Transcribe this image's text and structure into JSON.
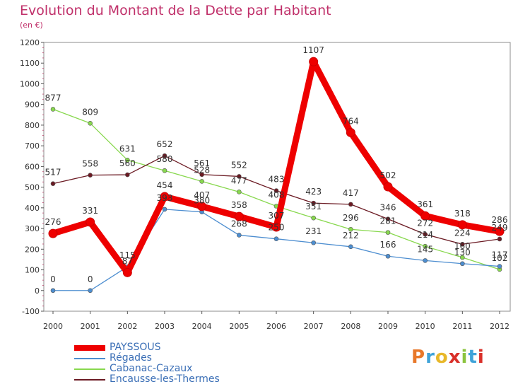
{
  "title": "Evolution du Montant de la Dette par Habitant",
  "subtitle": "(en €)",
  "brand": {
    "text": "Proxiti",
    "letter_colors": [
      "#e8782a",
      "#3fa3d9",
      "#e8b82a",
      "#d9302a",
      "#8cc43f",
      "#3fa3d9",
      "#d9302a"
    ]
  },
  "chart_data": {
    "type": "line",
    "title": "Evolution du Montant de la Dette par Habitant",
    "ylabel": "(en €)",
    "xlabel": "",
    "x": [
      "2000",
      "2001",
      "2002",
      "2003",
      "2004",
      "2005",
      "2006",
      "2007",
      "2008",
      "2009",
      "2010",
      "2011",
      "2012"
    ],
    "ylim": [
      -100,
      1200
    ],
    "yticks": [
      -100,
      0,
      100,
      200,
      300,
      400,
      500,
      600,
      700,
      800,
      900,
      1000,
      1100,
      1200
    ],
    "grid": false,
    "legend_position": "bottom-left",
    "series": [
      {
        "name": "Cabanac-Cazaux",
        "color": "#88d84e",
        "values": [
          877,
          809,
          631,
          580,
          528,
          477,
          408,
          351,
          296,
          281,
          214,
          160,
          102
        ]
      },
      {
        "name": "Encausse-les-Thermes",
        "color": "#6b1a23",
        "values": [
          517,
          558,
          560,
          652,
          561,
          552,
          483,
          423,
          417,
          346,
          272,
          224,
          249
        ]
      },
      {
        "name": "Régades",
        "color": "#4d8ed0",
        "values": [
          0,
          0,
          115,
          393,
          380,
          268,
          250,
          231,
          212,
          166,
          145,
          130,
          117
        ]
      },
      {
        "name": "PAYSSOUS",
        "color": "#ee0000",
        "values": [
          276,
          331,
          87,
          454,
          407,
          358,
          307,
          1107,
          764,
          502,
          361,
          318,
          286
        ]
      }
    ],
    "legend": [
      "PAYSSOUS",
      "Régades",
      "Cabanac-Cazaux",
      "Encausse-les-Thermes"
    ]
  }
}
